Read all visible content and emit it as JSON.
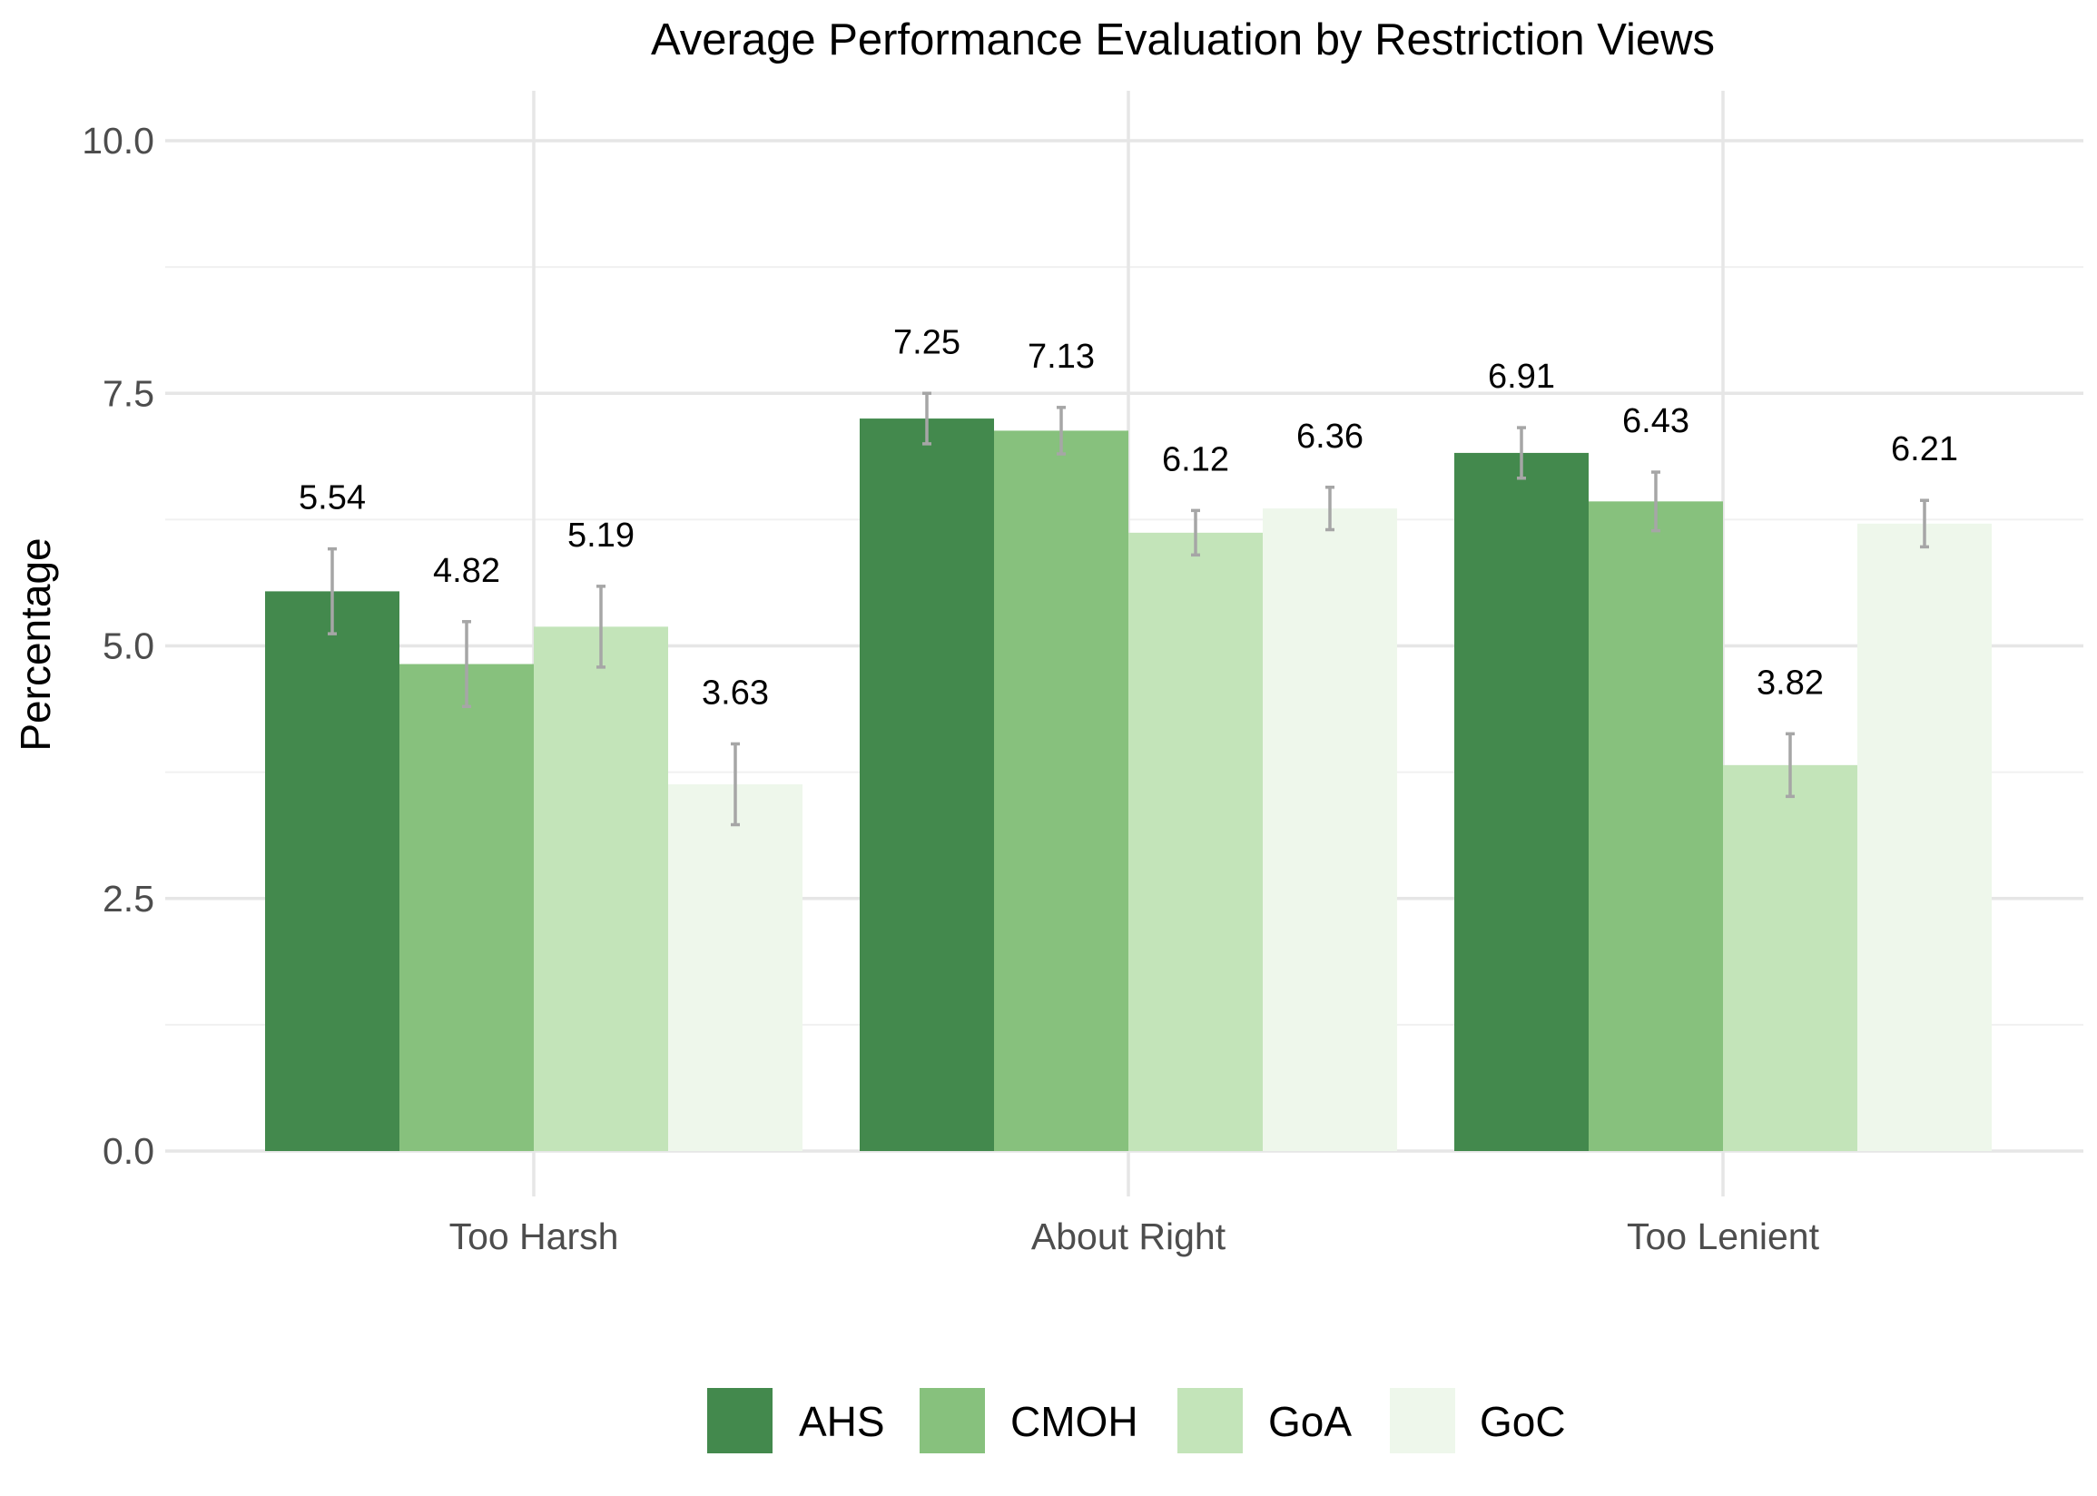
{
  "chart_data": {
    "type": "bar",
    "title": "Average Performance Evaluation by Restriction Views",
    "xlabel": "",
    "ylabel": "Percentage",
    "ylim": [
      0,
      10.5
    ],
    "yticks": [
      0,
      2.5,
      5,
      7.5,
      10
    ],
    "ytick_labels": [
      "0.0",
      "2.5",
      "5.0",
      "7.5",
      "10.0"
    ],
    "grid": true,
    "legend_position": "bottom",
    "categories": [
      "Too Harsh",
      "About Right",
      "Too Lenient"
    ],
    "series": [
      {
        "name": "AHS",
        "color": "#43894d",
        "values": [
          5.54,
          7.25,
          6.91
        ],
        "error": [
          0.42,
          0.25,
          0.25
        ],
        "labels": [
          "5.54",
          "7.25",
          "6.91"
        ]
      },
      {
        "name": "CMOH",
        "color": "#87c17d",
        "values": [
          4.82,
          7.13,
          6.43
        ],
        "error": [
          0.42,
          0.23,
          0.29
        ],
        "labels": [
          "4.82",
          "7.13",
          "6.43"
        ]
      },
      {
        "name": "GoA",
        "color": "#c3e4b9",
        "values": [
          5.19,
          6.12,
          3.82
        ],
        "error": [
          0.4,
          0.22,
          0.31
        ],
        "labels": [
          "5.19",
          "6.12",
          "3.82"
        ]
      },
      {
        "name": "GoC",
        "color": "#eef7eb",
        "values": [
          3.63,
          6.36,
          6.21
        ],
        "error": [
          0.4,
          0.21,
          0.23
        ],
        "labels": [
          "3.63",
          "6.36",
          "6.21"
        ]
      }
    ]
  }
}
